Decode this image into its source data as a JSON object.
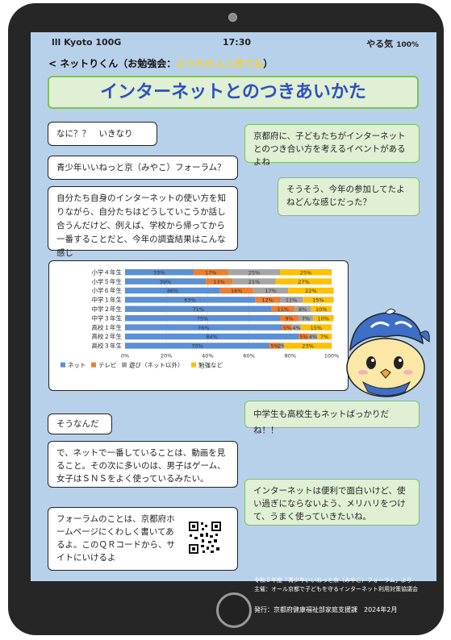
{
  "status": {
    "carrier": "lll Kyoto 100G",
    "time": "17:30",
    "battery_label": "やる気",
    "battery_pct": "100%"
  },
  "nav": {
    "back": "<",
    "chat_name": "ネットりくん",
    "sub_open": "（お勉強会：",
    "sub_highlight": "おうちの人と見てね",
    "sub_close": "）"
  },
  "title": "インターネットとのつきあいかた",
  "messages": [
    {
      "side": "left",
      "text": "なに？？　いきなり"
    },
    {
      "side": "right",
      "text": "京都府に、子どもたちがインターネットとのつき合い方を考えるイベントがあるよね"
    },
    {
      "side": "left",
      "text": "青少年いいねっと京（みやこ）フォーラム？"
    },
    {
      "side": "right",
      "text": "そうそう、今年の参加してたよねどんな感じだった？"
    },
    {
      "side": "left",
      "text": "自分たち自身のインターネットの使い方を知りながら、自分たちはどうしていこうか話し合うんだけど、例えば、学校から帰ってから一番することだと、今年の調査結果はこんな感じ"
    },
    {
      "side": "right",
      "text": "中学生も高校生もネットばっかりだね！！"
    },
    {
      "side": "left",
      "text": "そうなんだ"
    },
    {
      "side": "left",
      "text": "で、ネットで一番していることは、動画を見ること。その次に多いのは、男子はゲーム、女子はＳＮＳをよく使っているみたい。"
    },
    {
      "side": "right",
      "text": "インターネットは便利で面白いけど、使い過ぎにならないよう、メリハリをつけて、うまく使っていきたいね。"
    },
    {
      "side": "left",
      "text": "フォーラムのことは、京都府ホームページにくわしく書いてあるよ。このＱＲコードから、サイトにいけるよ"
    }
  ],
  "chart_data": {
    "type": "bar",
    "stacked": true,
    "orientation": "horizontal",
    "categories": [
      "小学４年生",
      "小学５年生",
      "小学６年生",
      "中学１年生",
      "中学２年生",
      "中学３年生",
      "高校１年生",
      "高校２年生",
      "高校３年生"
    ],
    "series": [
      {
        "name": "ネット",
        "color": "#5b8fd6",
        "values": [
          33,
          39,
          46,
          63,
          71,
          75,
          76,
          84,
          70
        ]
      },
      {
        "name": "テレビ",
        "color": "#ed7d31",
        "values": [
          17,
          13,
          16,
          12,
          11,
          9,
          5,
          5,
          5
        ]
      },
      {
        "name": "遊び（ネット以外）",
        "color": "#a5a5a5",
        "values": [
          25,
          21,
          17,
          11,
          8,
          7,
          4,
          4,
          2
        ]
      },
      {
        "name": "勉強など",
        "color": "#ffc000",
        "values": [
          25,
          27,
          22,
          15,
          10,
          10,
          15,
          7,
          23
        ]
      }
    ],
    "xlim": [
      0,
      100
    ],
    "xticks": [
      "0%",
      "20%",
      "40%",
      "60%",
      "80%",
      "100%"
    ],
    "grid": true,
    "legend": "bottom"
  },
  "footer": {
    "source": "令和５年度「青少年いいねっと京（みやこ）フォーラム」より",
    "host": "主催：オール京都で子どもを守るインターネット利用対策協議会",
    "issuer": "発行：京都府健康福祉部家庭支援課　2024年2月"
  },
  "colors": {
    "screen_bg": "#b8d1ea",
    "green_bubble": "#dff0d4",
    "green_border": "#7fbf5f",
    "title_text": "#2f4fc0"
  }
}
